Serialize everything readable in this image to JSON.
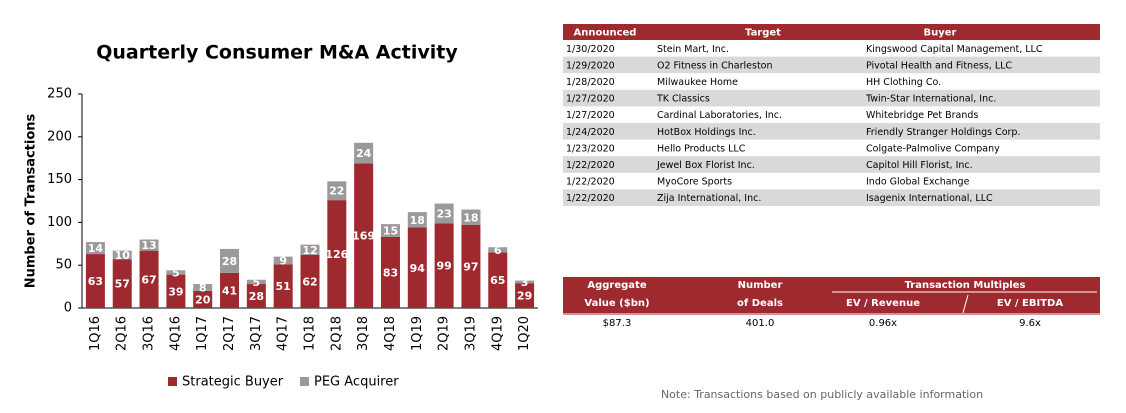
{
  "chart_data": {
    "type": "stacked_bar",
    "title": "Quarterly Consumer M&A Activity",
    "y_label": "Number of Transactions",
    "categories": [
      "1Q16",
      "2Q16",
      "3Q16",
      "4Q16",
      "1Q17",
      "2Q17",
      "3Q17",
      "4Q17",
      "1Q18",
      "2Q18",
      "3Q18",
      "4Q18",
      "1Q19",
      "2Q19",
      "3Q19",
      "4Q19",
      "1Q20"
    ],
    "series": [
      {
        "name": "Strategic Buyer",
        "color": "#9e2a2f",
        "values": [
          63,
          57,
          67,
          39,
          20,
          41,
          28,
          51,
          62,
          126,
          169,
          83,
          94,
          99,
          97,
          65,
          29
        ]
      },
      {
        "name": "PEG Acquirer",
        "color": "#9a9a9a",
        "values": [
          14,
          10,
          13,
          5,
          8,
          28,
          5,
          9,
          12,
          22,
          24,
          15,
          18,
          23,
          18,
          6,
          3
        ]
      }
    ],
    "ylim": [
      0,
      250
    ],
    "yticks": [
      0,
      50,
      100,
      150,
      200,
      250
    ],
    "legend": "bottom"
  },
  "deals_table": {
    "columns": [
      "Announced",
      "Target",
      "Buyer"
    ],
    "rows": [
      [
        "1/30/2020",
        "Stein Mart, Inc.",
        "Kingswood Capital Management, LLC"
      ],
      [
        "1/29/2020",
        "O2 Fitness in Charleston",
        "Pivotal Health and Fitness, LLC"
      ],
      [
        "1/28/2020",
        "Milwaukee Home",
        "HH Clothing Co."
      ],
      [
        "1/27/2020",
        "TK Classics",
        "Twin-Star International, Inc."
      ],
      [
        "1/27/2020",
        "Cardinal Laboratories, Inc.",
        "Whitebridge Pet Brands"
      ],
      [
        "1/24/2020",
        "HotBox Holdings Inc.",
        "Friendly Stranger Holdings Corp."
      ],
      [
        "1/23/2020",
        "Hello Products LLC",
        "Colgate-Palmolive Company"
      ],
      [
        "1/22/2020",
        "Jewel Box Florist Inc.",
        "Capitol Hill Florist, Inc."
      ],
      [
        "1/22/2020",
        "MyoCore Sports",
        "Indo Global Exchange"
      ],
      [
        "1/22/2020",
        "Zija International, Inc.",
        "Isagenix International, LLC"
      ]
    ]
  },
  "summary_table": {
    "aggregate_header": [
      "Aggregate",
      "Value ($bn)"
    ],
    "deals_header": [
      "Number",
      "of Deals"
    ],
    "multiples_header": "Transaction Multiples",
    "ev_revenue_header": "EV / Revenue",
    "ev_ebitda_header": "EV / EBITDA",
    "values": [
      "$87.3",
      "401.0",
      "0.96x",
      "9.6x"
    ]
  },
  "note": "Note: Transactions based on publicly available information"
}
